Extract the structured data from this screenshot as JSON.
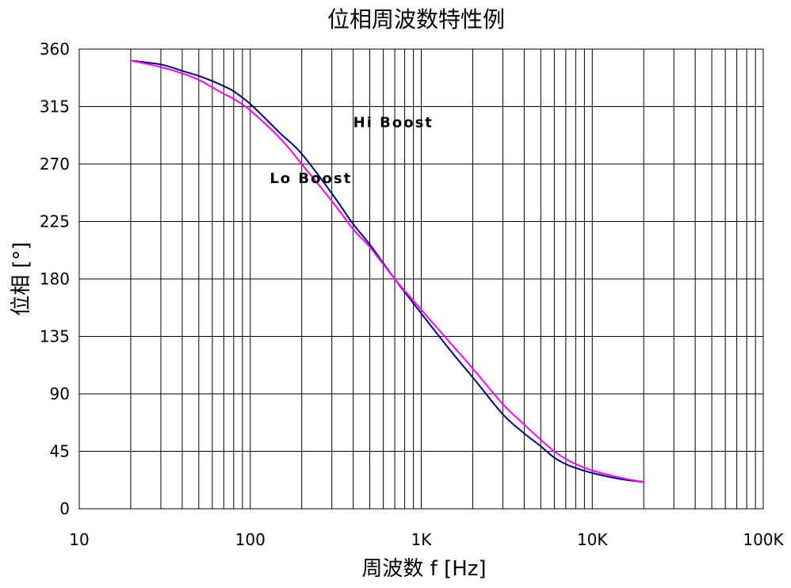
{
  "chart_data": {
    "type": "line",
    "title": "位相周波数特性例",
    "xlabel": "周波数 f [Hz]",
    "ylabel": "位相 [°]",
    "x_scale": "log",
    "xlim": [
      10,
      100000
    ],
    "ylim": [
      0,
      360
    ],
    "grid": true,
    "x_ticks": [
      {
        "value": 10,
        "label": "10"
      },
      {
        "value": 100,
        "label": "100"
      },
      {
        "value": 1000,
        "label": "1K"
      },
      {
        "value": 10000,
        "label": "10K"
      },
      {
        "value": 100000,
        "label": "100K"
      }
    ],
    "y_ticks": [
      0,
      45,
      90,
      135,
      180,
      225,
      270,
      315,
      360
    ],
    "series": [
      {
        "name": "Hi Boost",
        "color": "#000080",
        "x": [
          20,
          30,
          40,
          50,
          60,
          70,
          80,
          100,
          150,
          200,
          300,
          400,
          500,
          700,
          1000,
          1500,
          2000,
          3000,
          4000,
          5000,
          6000,
          7000,
          8000,
          10000,
          15000,
          20000
        ],
        "y": [
          351,
          348,
          343,
          339,
          335,
          331,
          327,
          317,
          294,
          278,
          247,
          223,
          207,
          180,
          153,
          123,
          103,
          74,
          59,
          49,
          40,
          35,
          32,
          28,
          23,
          21
        ]
      },
      {
        "name": "Lo Boost",
        "color": "#ff00ff",
        "x": [
          20,
          30,
          40,
          50,
          60,
          70,
          80,
          100,
          150,
          200,
          300,
          400,
          500,
          700,
          1000,
          1500,
          2000,
          3000,
          4000,
          5000,
          6000,
          7000,
          8000,
          10000,
          15000,
          20000
        ],
        "y": [
          351,
          346,
          341,
          336,
          330,
          325,
          321,
          312,
          290,
          270,
          241,
          219,
          205,
          180,
          156,
          129,
          110,
          82,
          66,
          54,
          45,
          39,
          35,
          30,
          24,
          21
        ]
      }
    ],
    "annotations": [
      {
        "text": "Hi Boost",
        "x": 400,
        "y": 299
      },
      {
        "text": "Lo Boost",
        "x": 130,
        "y": 255
      }
    ]
  }
}
